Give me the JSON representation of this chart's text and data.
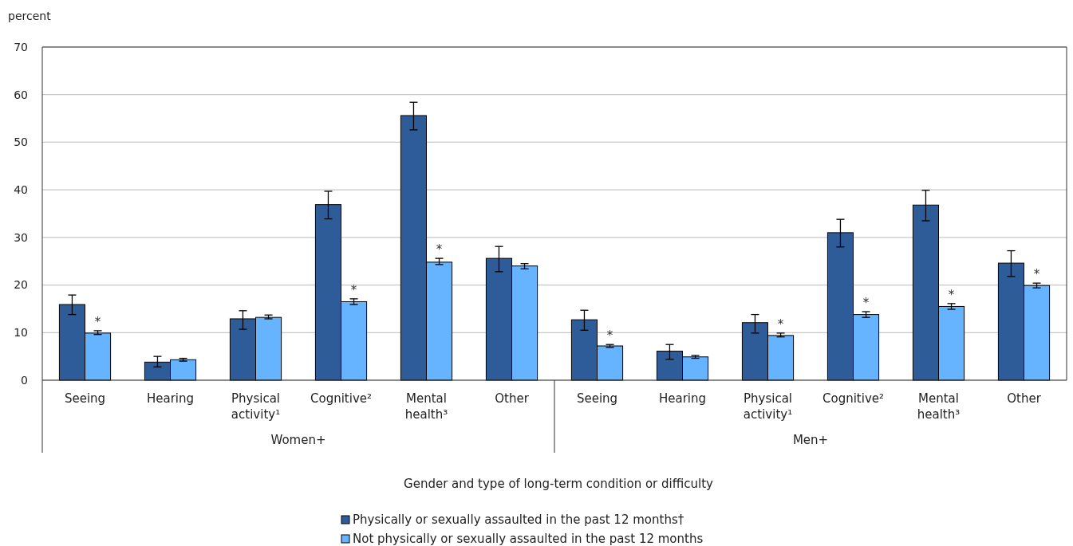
{
  "chart_data": {
    "type": "bar",
    "ylabel": "percent",
    "xlabel": "Gender and type of long-term condition or difficulty",
    "categories": [
      "Seeing",
      "Hearing",
      "Physical activity¹",
      "Cognitive²",
      "Mental health³",
      "Other",
      "Seeing",
      "Hearing",
      "Physical activity¹",
      "Cognitive²",
      "Mental health³",
      "Other"
    ],
    "series": [
      {
        "name": "Physically or sexually assaulted in the past 12 months†",
        "color": "#2e5c99",
        "values": [
          15.9,
          3.8,
          12.9,
          36.9,
          55.6,
          25.6,
          12.7,
          6.1,
          12.1,
          31.0,
          36.8,
          24.6
        ],
        "errors": [
          [
            13.8,
            17.9
          ],
          [
            2.8,
            5.0
          ],
          [
            10.7,
            14.6
          ],
          [
            33.9,
            39.7
          ],
          [
            52.6,
            58.4
          ],
          [
            22.8,
            28.1
          ],
          [
            10.5,
            14.7
          ],
          [
            4.4,
            7.5
          ],
          [
            9.9,
            13.8
          ],
          [
            28.0,
            33.8
          ],
          [
            33.5,
            39.9
          ],
          [
            21.8,
            27.2
          ]
        ]
      },
      {
        "name": "Not physically or sexually assaulted in the past 12 months",
        "color": "#66b3ff",
        "values": [
          9.9,
          4.3,
          13.2,
          16.5,
          24.8,
          24.0,
          7.2,
          4.9,
          9.4,
          13.8,
          15.5,
          19.9
        ],
        "errors": [
          [
            9.6,
            10.4
          ],
          [
            4.0,
            4.6
          ],
          [
            12.9,
            13.7
          ],
          [
            15.9,
            17.1
          ],
          [
            24.3,
            25.6
          ],
          [
            23.4,
            24.5
          ],
          [
            6.9,
            7.5
          ],
          [
            4.6,
            5.2
          ],
          [
            9.1,
            9.9
          ],
          [
            13.2,
            14.4
          ],
          [
            14.9,
            16.1
          ],
          [
            19.4,
            20.4
          ]
        ],
        "value_labels": [
          "*",
          null,
          null,
          "*",
          "*",
          null,
          "*",
          null,
          "*",
          "*",
          "*",
          "*"
        ]
      }
    ],
    "annotations": [
      "Women+",
      "Men+"
    ],
    "ylim": [
      0,
      70
    ],
    "yticks": [
      0,
      10,
      20,
      30,
      40,
      50,
      60,
      70
    ],
    "grid": "y",
    "legend": "bottom"
  }
}
